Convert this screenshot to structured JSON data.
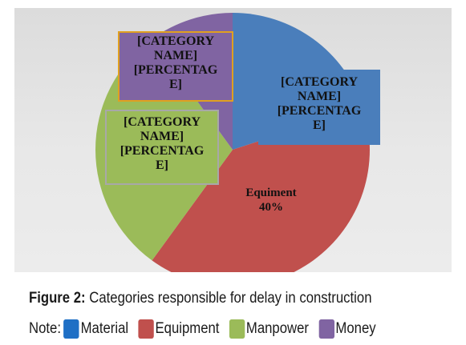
{
  "chart_data": {
    "type": "pie",
    "series": [
      {
        "slices": [
          {
            "name": "Material",
            "value": 20,
            "color": "#4a7ebb",
            "label": [
              "[CATEGORY",
              "NAME]",
              "[PERCENTAG",
              "E]"
            ]
          },
          {
            "name": "Equipment",
            "value": 40,
            "color": "#c0504d",
            "label": [
              "Equiment",
              "40%"
            ]
          },
          {
            "name": "Manpower",
            "value": 30,
            "color": "#9bbb59",
            "label": [
              "[CATEGORY",
              "NAME]",
              "[PERCENTAG",
              "E]"
            ]
          },
          {
            "name": "Money",
            "value": 10,
            "color": "#8064a2",
            "label": [
              "[CATEGORY",
              "NAME]",
              "[PERCENTAG",
              "E]"
            ]
          }
        ]
      }
    ]
  },
  "caption": {
    "prefix": "Figure 2:",
    "text": " Categories responsible for delay in construction"
  },
  "note": {
    "label": "Note:",
    "items": [
      {
        "text": "Material",
        "color": "#1f6fc5"
      },
      {
        "text": "Equipment",
        "color": "#c0504d"
      },
      {
        "text": "Manpower",
        "color": "#9bbb59"
      },
      {
        "text": "Money",
        "color": "#8064a2"
      }
    ]
  }
}
